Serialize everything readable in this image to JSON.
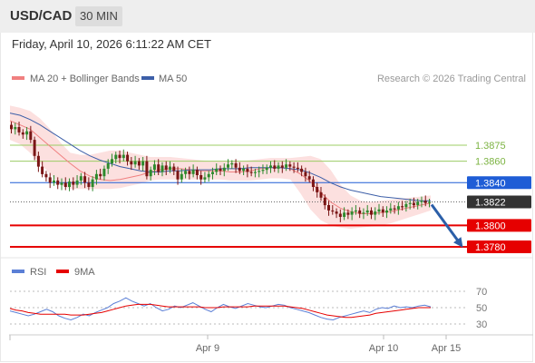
{
  "header": {
    "pair": "USD/CAD",
    "timeframe": "30 MIN",
    "datetime": "Friday, April 10, 2026 6:11:22 AM CET"
  },
  "legend": {
    "ma20": "MA 20 + Bollinger Bands",
    "ma50": "MA 50",
    "credit": "Research © 2026 Trading Central",
    "rsi": "RSI",
    "ma9": "9MA"
  },
  "colors": {
    "bands_fill": "#fbd6d4",
    "ma20": "#f08080",
    "ma50": "#3d5fa8",
    "candle_up": "#2d8a2d",
    "candle_down": "#7a1515",
    "resistance": "#9ccc65",
    "pivot": "#1f5dd6",
    "support": "#e60000",
    "last_price": "#333333",
    "arrow": "#2b5fa8",
    "rsi": "#5b7fd6",
    "rsi_ma": "#e60000"
  },
  "chart_data": [
    {
      "type": "candlestick",
      "title": "USD/CAD",
      "timeframe": "30 MIN",
      "x_ticks": [
        "Apr 9",
        "Apr 10",
        "Apr 15"
      ],
      "ylim": [
        1.377,
        1.3925
      ],
      "levels": [
        {
          "label": "1.3875",
          "value": 1.3875,
          "kind": "resistance"
        },
        {
          "label": "1.3860",
          "value": 1.386,
          "kind": "resistance"
        },
        {
          "label": "1.3840",
          "value": 1.384,
          "kind": "pivot"
        },
        {
          "label": "1.3822",
          "value": 1.3822,
          "kind": "last"
        },
        {
          "label": "1.3800",
          "value": 1.38,
          "kind": "support"
        },
        {
          "label": "1.3780",
          "value": 1.378,
          "kind": "support"
        }
      ],
      "forecast_arrow": {
        "from": 1.3822,
        "to": 1.378,
        "direction": "down"
      },
      "closes": [
        1.389,
        1.3892,
        1.3887,
        1.3885,
        1.3888,
        1.388,
        1.3865,
        1.3855,
        1.3848,
        1.3845,
        1.384,
        1.3842,
        1.3838,
        1.384,
        1.3836,
        1.3841,
        1.3838,
        1.3842,
        1.3846,
        1.384,
        1.3836,
        1.3843,
        1.3848,
        1.3846,
        1.3853,
        1.3858,
        1.3862,
        1.3866,
        1.3863,
        1.3866,
        1.386,
        1.3857,
        1.386,
        1.3856,
        1.386,
        1.3846,
        1.3852,
        1.3857,
        1.385,
        1.3856,
        1.3852,
        1.3855,
        1.3851,
        1.3843,
        1.3848,
        1.3851,
        1.3848,
        1.3852,
        1.3847,
        1.3843,
        1.3845,
        1.3848,
        1.385,
        1.3853,
        1.3851,
        1.3854,
        1.3857,
        1.3858,
        1.3854,
        1.3851,
        1.3853,
        1.385,
        1.3849,
        1.385,
        1.3851,
        1.3852,
        1.3854,
        1.3856,
        1.3853,
        1.3856,
        1.3854,
        1.3857,
        1.3855,
        1.3854,
        1.3853,
        1.385,
        1.3846,
        1.3843,
        1.3836,
        1.3831,
        1.3826,
        1.3819,
        1.3814,
        1.3813,
        1.3811,
        1.3808,
        1.3812,
        1.381,
        1.3813,
        1.3814,
        1.3811,
        1.3812,
        1.3814,
        1.381,
        1.3813,
        1.3815,
        1.3812,
        1.3814,
        1.3816,
        1.3815,
        1.3818,
        1.3817,
        1.382,
        1.3821,
        1.3819,
        1.3822,
        1.3823,
        1.3821,
        1.3822
      ],
      "ma20": [
        1.3898,
        1.3894,
        1.389,
        1.3882,
        1.3874,
        1.3866,
        1.3858,
        1.3851,
        1.3846,
        1.3843,
        1.3842,
        1.3843,
        1.3845,
        1.3847,
        1.385,
        1.3852,
        1.3853,
        1.3853,
        1.3852,
        1.3851,
        1.3851,
        1.3851,
        1.385,
        1.385,
        1.3851,
        1.3853,
        1.3854,
        1.3854,
        1.3853,
        1.3848,
        1.3841,
        1.3831,
        1.3822,
        1.3816,
        1.3813,
        1.3811,
        1.3811,
        1.3812,
        1.3813,
        1.3815,
        1.3817,
        1.3819,
        1.3821
      ],
      "ma50": [
        1.3905,
        1.3903,
        1.3899,
        1.3894,
        1.3888,
        1.3882,
        1.3876,
        1.387,
        1.3865,
        1.3861,
        1.3858,
        1.3855,
        1.3853,
        1.3851,
        1.385,
        1.385,
        1.3851,
        1.3851,
        1.3852,
        1.3852,
        1.3852,
        1.3853,
        1.3853,
        1.3853,
        1.3854,
        1.3854,
        1.3854,
        1.3854,
        1.3853,
        1.3852,
        1.3849,
        1.3845,
        1.384,
        1.3836,
        1.3833,
        1.3831,
        1.3829,
        1.3827,
        1.3826,
        1.3825,
        1.3824,
        1.3823,
        1.3823
      ],
      "bb_upper": [
        1.3912,
        1.391,
        1.3907,
        1.39,
        1.389,
        1.3878,
        1.3868,
        1.3866,
        1.3866,
        1.3868,
        1.387,
        1.387,
        1.3868,
        1.3866,
        1.3864,
        1.3864,
        1.3864,
        1.3863,
        1.3862,
        1.3861,
        1.386,
        1.386,
        1.386,
        1.386,
        1.3861,
        1.3862,
        1.3863,
        1.3863,
        1.3863,
        1.3864,
        1.3865,
        1.3862,
        1.3852,
        1.3838,
        1.3828,
        1.3823,
        1.3822,
        1.3823,
        1.3824,
        1.3825,
        1.3826,
        1.3827,
        1.3828
      ],
      "bb_lower": [
        1.388,
        1.3876,
        1.3868,
        1.3858,
        1.3848,
        1.3838,
        1.3834,
        1.3834,
        1.3834,
        1.3834,
        1.3834,
        1.3835,
        1.3837,
        1.3839,
        1.3842,
        1.3843,
        1.3843,
        1.3843,
        1.3843,
        1.3843,
        1.3843,
        1.3843,
        1.3842,
        1.3842,
        1.3842,
        1.3843,
        1.3844,
        1.3844,
        1.3843,
        1.383,
        1.3815,
        1.3805,
        1.38,
        1.3798,
        1.3797,
        1.3798,
        1.3799,
        1.38,
        1.3802,
        1.3805,
        1.3808,
        1.3811,
        1.3814
      ]
    },
    {
      "type": "line",
      "title": "RSI",
      "ylim": [
        20,
        80
      ],
      "y_ticks": [
        70,
        50,
        30
      ],
      "series": [
        {
          "name": "RSI",
          "values": [
            46,
            44,
            42,
            40,
            42,
            45,
            48,
            45,
            40,
            37,
            35,
            38,
            42,
            40,
            44,
            47,
            50,
            55,
            58,
            62,
            58,
            55,
            52,
            55,
            50,
            46,
            48,
            52,
            50,
            53,
            56,
            52,
            48,
            45,
            50,
            54,
            51,
            49,
            52,
            55,
            53,
            51,
            50,
            52,
            54,
            53,
            50,
            48,
            46,
            44,
            41,
            38,
            36,
            35,
            38,
            40,
            42,
            44,
            46,
            44,
            48,
            50,
            49,
            52,
            50,
            51,
            50,
            52,
            53,
            51
          ]
        },
        {
          "name": "9MA",
          "values": [
            49,
            47,
            46,
            44,
            43,
            42,
            42,
            42,
            42,
            42,
            41,
            41,
            41,
            42,
            43,
            44,
            46,
            48,
            50,
            52,
            53,
            54,
            54,
            54,
            53,
            52,
            51,
            51,
            51,
            51,
            51,
            51,
            50,
            50,
            50,
            51,
            51,
            51,
            51,
            51,
            52,
            52,
            52,
            52,
            52,
            52,
            51,
            50,
            49,
            47,
            45,
            43,
            41,
            40,
            39,
            38,
            38,
            39,
            40,
            41,
            43,
            44,
            45,
            46,
            47,
            48,
            49,
            50,
            50,
            50
          ]
        }
      ]
    }
  ]
}
